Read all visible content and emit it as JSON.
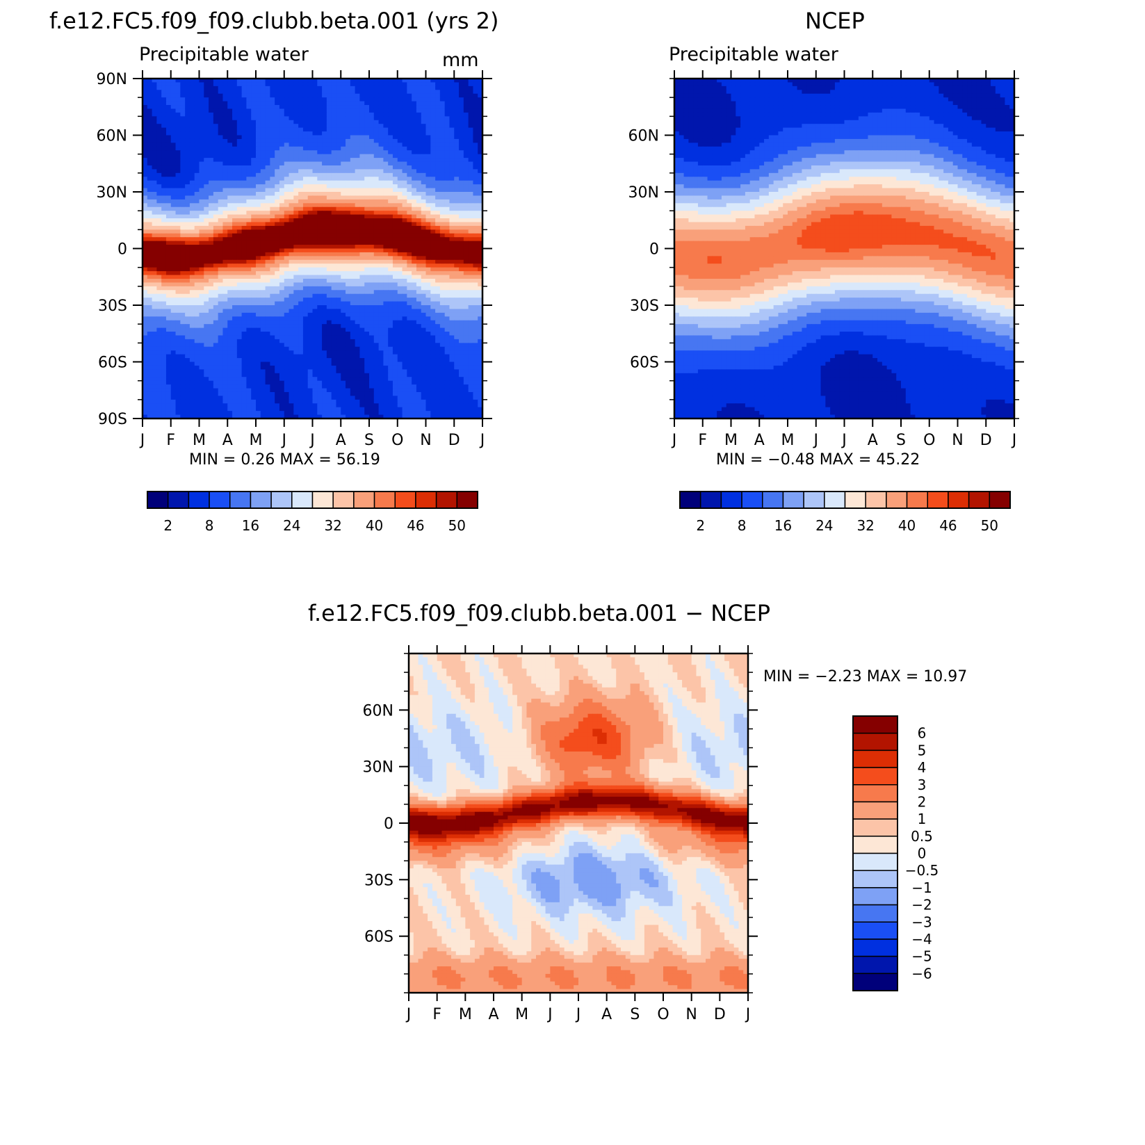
{
  "chart_data": [
    {
      "type": "heatmap",
      "id": "model",
      "title": "f.e12.FC5.f09_f09.clubb.beta.001 (yrs 2)",
      "subtitle": "Precipitable water",
      "units": "mm",
      "x_ticks": [
        "J",
        "F",
        "M",
        "A",
        "M",
        "J",
        "J",
        "A",
        "S",
        "O",
        "N",
        "D",
        "J"
      ],
      "y_ticks": [
        "90N",
        "60N",
        "30N",
        "0",
        "30S",
        "60S",
        "90S"
      ],
      "ylim": [
        -90,
        90
      ],
      "stats_text": "MIN =    0.26  MAX =    56.19",
      "min": 0.26,
      "max": 56.19,
      "colorbar_labels": [
        "2",
        "8",
        "16",
        "24",
        "32",
        "40",
        "46",
        "50"
      ],
      "pattern": "itcz_peak_aug"
    },
    {
      "type": "heatmap",
      "id": "obs",
      "title": "NCEP",
      "subtitle": "Precipitable water",
      "x_ticks": [
        "J",
        "F",
        "M",
        "A",
        "M",
        "J",
        "J",
        "A",
        "S",
        "O",
        "N",
        "D",
        "J"
      ],
      "y_ticks": [
        "60N",
        "30N",
        "0",
        "30S",
        "60S"
      ],
      "ylim": [
        -90,
        90
      ],
      "stats_text": "MIN =   −0.48  MAX =    45.22",
      "min": -0.48,
      "max": 45.22,
      "colorbar_labels": [
        "2",
        "8",
        "16",
        "24",
        "32",
        "40",
        "46",
        "50"
      ],
      "pattern": "broad_tropical_band"
    },
    {
      "type": "heatmap",
      "id": "diff",
      "title": "f.e12.FC5.f09_f09.clubb.beta.001 − NCEP",
      "x_ticks": [
        "J",
        "F",
        "M",
        "A",
        "M",
        "J",
        "J",
        "A",
        "S",
        "O",
        "N",
        "D",
        "J"
      ],
      "y_ticks": [
        "60N",
        "30N",
        "0",
        "30S",
        "60S"
      ],
      "ylim": [
        -90,
        90
      ],
      "stats_text": "MIN =   −2.23  MAX =    10.97",
      "min": -2.23,
      "max": 10.97,
      "colorbar_labels": [
        "6",
        "5",
        "4",
        "3",
        "2",
        "1",
        "0.5",
        "0",
        "−0.5",
        "−1",
        "−2",
        "−3",
        "−4",
        "−5",
        "−6"
      ],
      "pattern": "tropical_excess_southern_deficit"
    }
  ],
  "palette": [
    "#00007a",
    "#0016ad",
    "#0030e0",
    "#1a4ff5",
    "#4776f2",
    "#7ea1f5",
    "#adc5f8",
    "#d9e8fb",
    "#fde7d6",
    "#fcc4a8",
    "#f9a07a",
    "#f77a4c",
    "#f44d1c",
    "#dc2e04",
    "#b21400",
    "#850000"
  ]
}
